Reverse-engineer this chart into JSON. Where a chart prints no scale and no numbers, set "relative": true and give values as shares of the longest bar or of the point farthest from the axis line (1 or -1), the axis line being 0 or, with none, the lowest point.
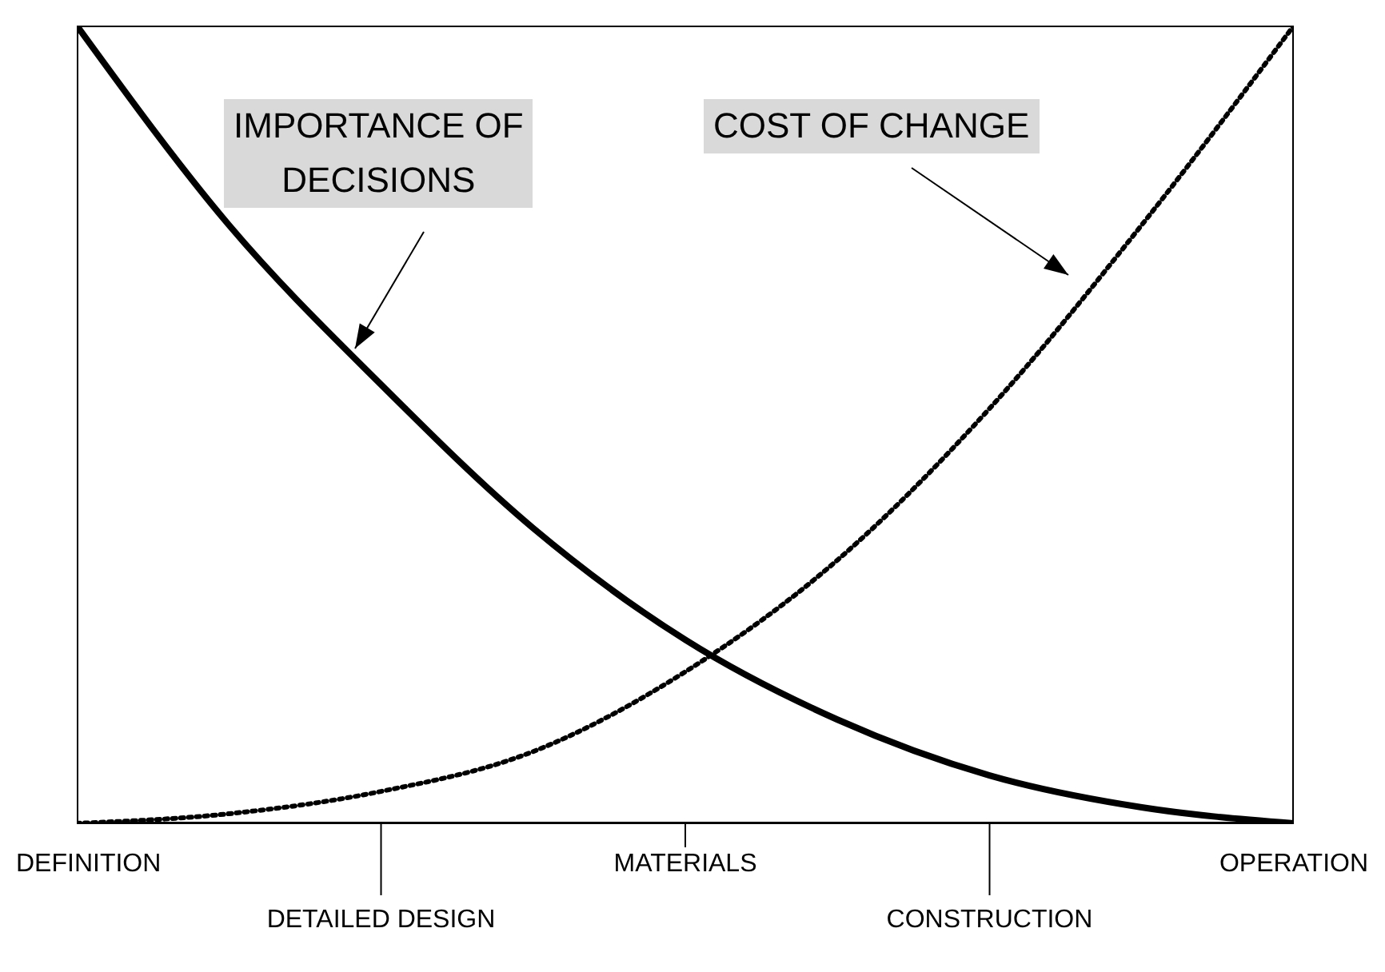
{
  "chart_data": {
    "type": "line",
    "relative": true,
    "marker": "none",
    "categories": [
      "DEFINITION",
      null,
      "DETAILED DESIGN",
      null,
      "MATERIALS",
      null,
      "CONSTRUCTION",
      null,
      "OPERATION"
    ],
    "series": [
      {
        "color": "#000000",
        "line_style": "solid",
        "values": [
          1,
          0.75,
          0.55,
          0.37,
          0.23,
          0.13,
          0.06,
          0.02,
          0
        ]
      },
      {
        "color": "#000000",
        "line_style": "dotted",
        "values": [
          0,
          0.012,
          0.04,
          0.09,
          0.19,
          0.33,
          0.52,
          0.75,
          1
        ]
      }
    ],
    "annotations": [
      "IMPORTANCE OF\nDECISIONS",
      "COST OF CHANGE"
    ]
  }
}
